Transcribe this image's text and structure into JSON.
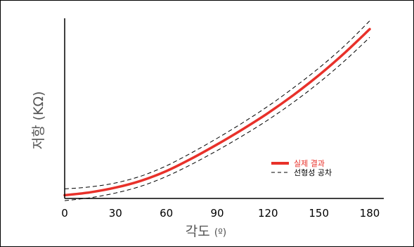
{
  "chart_data": {
    "type": "line",
    "title": "",
    "xlabel": "각도",
    "xlabel_unit": "(º)",
    "ylabel": "저항 (KΩ)",
    "x_ticks": [
      "0",
      "30",
      "60",
      "90",
      "120",
      "150",
      "180"
    ],
    "xlim": [
      0,
      180
    ],
    "ylim": [
      0,
      1
    ],
    "grid": false,
    "legend_position": "lower-right",
    "series": [
      {
        "name": "실제 결과",
        "color": "#e8312a",
        "style": "solid",
        "x": [
          0,
          15,
          30,
          45,
          60,
          75,
          90,
          105,
          120,
          135,
          150,
          165,
          180
        ],
        "y": [
          0.018,
          0.034,
          0.06,
          0.098,
          0.152,
          0.222,
          0.3,
          0.384,
          0.474,
          0.574,
          0.684,
          0.806,
          0.94
        ]
      },
      {
        "name": "선형성 공차",
        "color": "#000000",
        "style": "dashed",
        "x": [
          0,
          15,
          30,
          45,
          60,
          75,
          90,
          105,
          120,
          135,
          150,
          165,
          180
        ],
        "y": [
          0.053,
          0.064,
          0.086,
          0.124,
          0.181,
          0.254,
          0.334,
          0.42,
          0.512,
          0.614,
          0.724,
          0.846,
          0.986
        ]
      },
      {
        "name": "",
        "color": "#000000",
        "style": "dashed",
        "x": [
          0,
          15,
          30,
          45,
          60,
          75,
          90,
          105,
          120,
          135,
          150,
          165,
          180
        ],
        "y": [
          -0.012,
          0.004,
          0.03,
          0.068,
          0.122,
          0.19,
          0.266,
          0.348,
          0.436,
          0.534,
          0.642,
          0.762,
          0.894
        ]
      }
    ]
  }
}
